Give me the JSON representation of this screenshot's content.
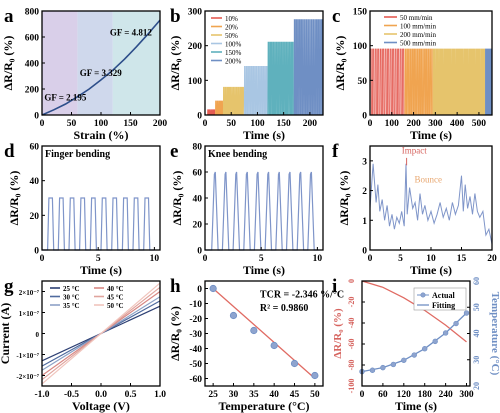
{
  "figure": {
    "panels": [
      "a",
      "b",
      "c",
      "d",
      "e",
      "f",
      "g",
      "h",
      "i"
    ]
  },
  "chart_data": [
    {
      "id": "a",
      "type": "line",
      "xlabel": "Strain (%)",
      "ylabel": "ΔR/R₀ (%)",
      "xlim": [
        0,
        200
      ],
      "ylim": [
        0,
        800
      ],
      "xticks": [
        0,
        50,
        100,
        150,
        200
      ],
      "yticks": [
        0,
        200,
        400,
        600,
        800
      ],
      "regions": [
        {
          "x": [
            0,
            60
          ],
          "color": "#d9cfe9"
        },
        {
          "x": [
            60,
            120
          ],
          "color": "#cfd8ec"
        },
        {
          "x": [
            120,
            200
          ],
          "color": "#cfe6ea"
        }
      ],
      "series": [
        {
          "color": "#2d4e8a",
          "x": [
            0,
            20,
            40,
            60,
            80,
            100,
            120,
            140,
            160,
            180,
            200
          ],
          "y": [
            0,
            40,
            85,
            140,
            200,
            270,
            345,
            430,
            525,
            625,
            730
          ]
        }
      ],
      "annotations": [
        "GF = 2.195",
        "GF = 3.329",
        "GF = 4.812"
      ]
    },
    {
      "id": "b",
      "type": "line",
      "xlabel": "Time (s)",
      "ylabel": "ΔR/R₀ (%)",
      "xlim": [
        0,
        225
      ],
      "ylim": [
        0,
        300
      ],
      "xticks": [
        0,
        50,
        100,
        150,
        200
      ],
      "yticks": [
        0,
        100,
        200,
        300
      ],
      "legend": [
        "10%",
        "20%",
        "50%",
        "100%",
        "150%",
        "200%"
      ],
      "series": [
        {
          "name": "10%",
          "color": "#e45b52",
          "t": [
            5,
            20
          ],
          "peak": 15
        },
        {
          "name": "20%",
          "color": "#f0a450",
          "t": [
            20,
            35
          ],
          "peak": 40
        },
        {
          "name": "50%",
          "color": "#e6c46c",
          "t": [
            35,
            75
          ],
          "peak": 80
        },
        {
          "name": "100%",
          "color": "#a9c6e3",
          "t": [
            75,
            120
          ],
          "peak": 140
        },
        {
          "name": "150%",
          "color": "#5fb1bd",
          "t": [
            120,
            170
          ],
          "peak": 210
        },
        {
          "name": "200%",
          "color": "#6f8fc4",
          "t": [
            170,
            225
          ],
          "peak": 275
        }
      ]
    },
    {
      "id": "c",
      "type": "line",
      "xlabel": "Time (s)",
      "ylabel": "ΔR/R₀ (%)",
      "xlim": [
        0,
        560
      ],
      "ylim": [
        0,
        150
      ],
      "xticks": [
        0,
        100,
        200,
        300,
        400,
        500
      ],
      "yticks": [
        0,
        50,
        100,
        150
      ],
      "legend": [
        "50 mm/min",
        "100 mm/min",
        "200 mm/min",
        "500 mm/min"
      ],
      "series": [
        {
          "name": "50 mm/min",
          "color": "#e45b52",
          "t": [
            0,
            160
          ],
          "peak": 95,
          "cycles": 14
        },
        {
          "name": "100 mm/min",
          "color": "#f0a450",
          "t": [
            160,
            290
          ],
          "peak": 95,
          "cycles": 16
        },
        {
          "name": "200 mm/min",
          "color": "#e6c46c",
          "t": [
            290,
            530
          ],
          "peak": 95,
          "cycles": 34
        },
        {
          "name": "500 mm/min",
          "color": "#6f8fc4",
          "t": [
            530,
            560
          ],
          "peak": 95,
          "cycles": 10
        }
      ]
    },
    {
      "id": "d",
      "type": "line",
      "label": "Finger bending",
      "xlabel": "Time (s)",
      "ylabel": "ΔR/R₀ (%)",
      "xlim": [
        0,
        10.5
      ],
      "ylim": [
        0,
        60
      ],
      "xticks": [
        0,
        5,
        10
      ],
      "yticks": [
        0,
        20,
        40,
        60
      ],
      "series": [
        {
          "color": "#7f95c9",
          "cycles": 10,
          "peak": 30,
          "start": 0.5,
          "period": 0.95
        }
      ]
    },
    {
      "id": "e",
      "type": "line",
      "label": "Knee bending",
      "xlabel": "Time (s)",
      "ylabel": "ΔR/R₀ (%)",
      "xlim": [
        0,
        10.5
      ],
      "ylim": [
        0,
        80
      ],
      "xticks": [
        0,
        5,
        10
      ],
      "yticks": [
        0,
        20,
        40,
        60,
        80
      ],
      "series": [
        {
          "color": "#7f95c9",
          "cycles": 10,
          "peak": 60,
          "start": 0.6,
          "period": 0.95
        }
      ]
    },
    {
      "id": "f",
      "type": "line",
      "xlabel": "Time (s)",
      "ylabel": "ΔR/R₀ (%)",
      "xlim": [
        0,
        20
      ],
      "ylim": [
        0,
        3.5
      ],
      "xticks": [
        0,
        5,
        10,
        15,
        20
      ],
      "yticks": [
        0,
        1,
        2,
        3
      ],
      "annotations": [
        "Impact",
        "Bounce"
      ],
      "series": [
        {
          "color": "#7f95c9",
          "x": [
            0,
            0.5,
            1,
            1.3,
            1.6,
            2,
            2.4,
            2.8,
            3.2,
            3.6,
            4,
            4.4,
            4.8,
            5.2,
            5.6,
            5.9,
            6.1,
            6.5,
            7,
            7.4,
            7.8,
            8.2,
            8.6,
            9,
            9.5,
            10,
            10.5,
            11,
            11.5,
            12,
            12.5,
            13,
            13.5,
            14,
            14.5,
            15,
            15.3,
            15.6,
            16,
            16.4,
            16.8,
            17.2,
            17.6,
            18,
            18.5,
            19,
            19.5,
            20
          ],
          "y": [
            1.4,
            2.9,
            1.6,
            2.2,
            1.3,
            1.7,
            1.0,
            1.5,
            0.8,
            1.2,
            0.7,
            1.1,
            0.9,
            1.3,
            0.8,
            2.9,
            1.2,
            2.1,
            1.4,
            1.6,
            1.0,
            1.9,
            1.2,
            1.5,
            1.0,
            1.3,
            0.9,
            1.2,
            1.6,
            1.1,
            1.4,
            1.0,
            1.6,
            1.2,
            1.5,
            2.5,
            1.3,
            2.2,
            1.4,
            1.8,
            1.2,
            1.9,
            1.3,
            1.1,
            1.3,
            0.5,
            0.7,
            0.2
          ]
        }
      ]
    },
    {
      "id": "g",
      "type": "line",
      "xlabel": "Voltage (V)",
      "ylabel": "Current (A)",
      "xlim": [
        -1,
        1
      ],
      "ylim": [
        -2.5e-07,
        2.5e-07
      ],
      "xticks": [
        -1.0,
        -0.5,
        0.0,
        0.5,
        1.0
      ],
      "xtick_labels": [
        "-1.0",
        "-0.5",
        "0.0",
        "0.5",
        "1.0"
      ],
      "yticks": [
        -2e-07,
        -1e-07,
        0,
        1e-07,
        2e-07
      ],
      "ytick_labels": [
        "-2×10⁻⁷",
        "-1×10⁻⁷",
        "0",
        "1×10⁻⁷",
        "2×10⁻⁷"
      ],
      "legend": [
        "25 °C",
        "30 °C",
        "35 °C",
        "40 °C",
        "45 °C",
        "50 °C"
      ],
      "series": [
        {
          "name": "25 °C",
          "color": "#2d3f73",
          "slope": 1.3e-07
        },
        {
          "name": "30 °C",
          "color": "#4f6a9e",
          "slope": 1.55e-07
        },
        {
          "name": "35 °C",
          "color": "#8da2c6",
          "slope": 1.75e-07
        },
        {
          "name": "40 °C",
          "color": "#d88884",
          "slope": 2e-07
        },
        {
          "name": "45 °C",
          "color": "#e0a49d",
          "slope": 2.2e-07
        },
        {
          "name": "50 °C",
          "color": "#f0c5bd",
          "slope": 2.4e-07
        }
      ]
    },
    {
      "id": "h",
      "type": "scatter",
      "xlabel": "Temperature (°C)",
      "ylabel": "ΔR/R₀ (%)",
      "xlim": [
        23,
        52
      ],
      "ylim": [
        -65,
        5
      ],
      "xticks": [
        25,
        30,
        35,
        40,
        45,
        50
      ],
      "yticks": [
        0,
        -10,
        -20,
        -30,
        -40,
        -50,
        -60
      ],
      "annotations": [
        "TCR = -2.346 %/°C",
        "R² = 0.9860"
      ],
      "points": {
        "x": [
          25,
          30,
          35,
          40,
          45,
          50
        ],
        "y": [
          0,
          -18,
          -28,
          -38,
          -50,
          -58
        ]
      },
      "fit": {
        "x": [
          25,
          50
        ],
        "y": [
          0,
          -60
        ],
        "color": "#e06b63"
      }
    },
    {
      "id": "i",
      "type": "line",
      "xlabel": "Time (s)",
      "ylabel": "ΔR/R₀ (%)",
      "ylabel_right": "Temperature (°C)",
      "xlim": [
        0,
        310
      ],
      "ylim": [
        -100,
        0
      ],
      "ylim_right": [
        20,
        60
      ],
      "xticks": [
        0,
        60,
        120,
        180,
        240,
        300
      ],
      "yticks": [
        0,
        -20,
        -40,
        -60,
        -80,
        -100
      ],
      "yticks_right": [
        20,
        30,
        40,
        50,
        60
      ],
      "legend": [
        "Actual",
        "Fitting"
      ],
      "series": [
        {
          "name": "ΔR/R₀",
          "color": "#e06b63",
          "x": [
            0,
            60,
            120,
            180,
            240,
            300
          ],
          "y": [
            0,
            -6,
            -16,
            -28,
            -42,
            -58
          ]
        },
        {
          "name": "Actual",
          "color": "#6f8fc4",
          "axis": "right",
          "x": [
            0,
            30,
            60,
            90,
            120,
            150,
            180,
            210,
            240,
            270,
            300
          ],
          "y": [
            25.5,
            26,
            27,
            28.2,
            29.8,
            31.8,
            34.2,
            37,
            40.2,
            43.8,
            47.8
          ]
        },
        {
          "name": "Fitting",
          "color": "#6f8fc4",
          "axis": "right",
          "x": [
            0,
            60,
            120,
            180,
            240,
            300
          ],
          "y": [
            25.5,
            27,
            29.8,
            34.2,
            40.2,
            47.8
          ]
        }
      ]
    }
  ]
}
